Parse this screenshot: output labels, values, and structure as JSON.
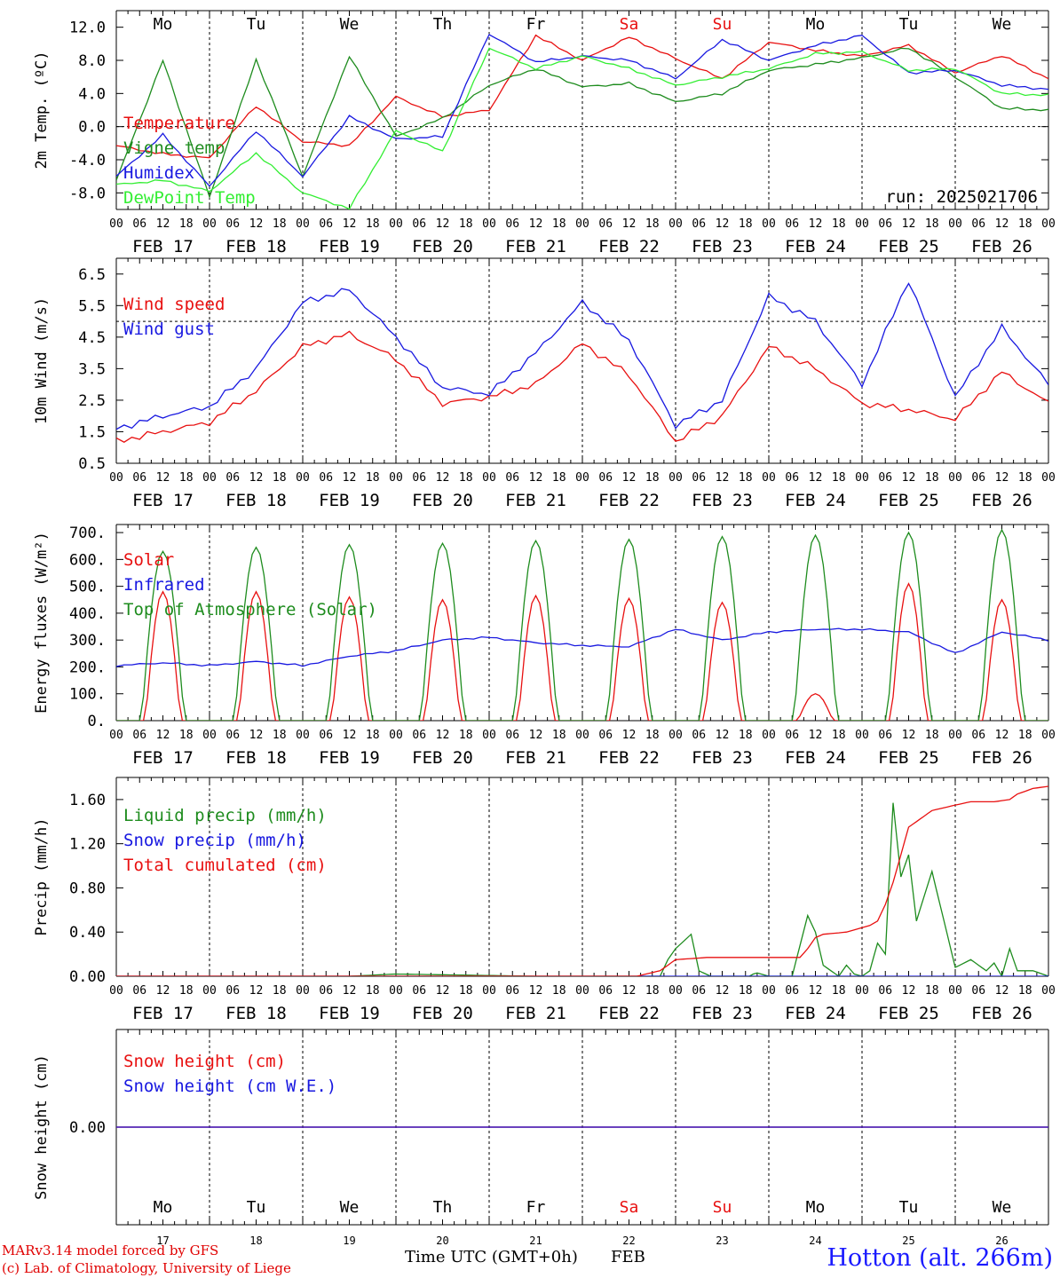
{
  "colors": {
    "red": "#e81010",
    "darkgreen": "#1e8c1e",
    "blue": "#1818e0",
    "lightgreen": "#33ee33",
    "grid": "#000000"
  },
  "days": [
    {
      "abbr": "Mo",
      "date": "FEB 17",
      "num": "17",
      "weekend": false
    },
    {
      "abbr": "Tu",
      "date": "FEB 18",
      "num": "18",
      "weekend": false
    },
    {
      "abbr": "We",
      "date": "FEB 19",
      "num": "19",
      "weekend": false
    },
    {
      "abbr": "Th",
      "date": "FEB 20",
      "num": "20",
      "weekend": false
    },
    {
      "abbr": "Fr",
      "date": "FEB 21",
      "num": "21",
      "weekend": false
    },
    {
      "abbr": "Sa",
      "date": "FEB 22",
      "num": "22",
      "weekend": true
    },
    {
      "abbr": "Su",
      "date": "FEB 23",
      "num": "23",
      "weekend": true
    },
    {
      "abbr": "Mo",
      "date": "FEB 24",
      "num": "24",
      "weekend": false
    },
    {
      "abbr": "Tu",
      "date": "FEB 25",
      "num": "25",
      "weekend": false
    },
    {
      "abbr": "We",
      "date": "FEB 26",
      "num": "26",
      "weekend": false
    }
  ],
  "hour_labels": [
    "00",
    "06",
    "12",
    "18"
  ],
  "chart_data": [
    {
      "id": "temp",
      "type": "line",
      "ylabel": "2m Temp. (ºC)",
      "ylim": [
        -10,
        14
      ],
      "yticks": [
        -8.0,
        -4.0,
        0.0,
        4.0,
        8.0,
        12.0
      ],
      "ytick_labels": [
        "-8.0",
        "-4.0",
        "0.0",
        "4.0",
        "8.0",
        "12.0"
      ],
      "ref_line": 0.0,
      "annotation": "run: 2025021706",
      "x_hours": [
        0,
        12,
        24,
        36,
        48,
        60,
        72,
        84,
        96,
        108,
        120,
        132,
        144,
        156,
        168,
        180,
        192,
        204,
        216,
        228,
        240
      ],
      "series": [
        {
          "name": "Temperature",
          "color": "#e81010",
          "values": [
            -2.3,
            -3.3,
            -3.8,
            2.5,
            -1.8,
            -2.3,
            3.6,
            1.2,
            2.0,
            11.0,
            8.0,
            10.8,
            8.2,
            5.8,
            10.2,
            9.2,
            8.5,
            9.8,
            6.5,
            8.6,
            5.8
          ]
        },
        {
          "name": "Vigne temp",
          "color": "#1e8c1e",
          "values": [
            -6.5,
            8.0,
            -8.5,
            8.1,
            -6.0,
            8.5,
            -1.2,
            1.0,
            5.0,
            7.0,
            4.8,
            5.2,
            3.0,
            4.0,
            6.8,
            7.5,
            8.3,
            9.5,
            6.0,
            2.2,
            2.0
          ]
        },
        {
          "name": "Humidex",
          "color": "#1818e0",
          "values": [
            -6.0,
            -1.0,
            -7.2,
            -0.5,
            -6.0,
            1.2,
            -1.5,
            -1.2,
            11.2,
            7.8,
            8.5,
            8.0,
            5.8,
            10.5,
            8.0,
            9.8,
            11.0,
            6.5,
            6.8,
            5.0,
            4.5
          ]
        },
        {
          "name": "DewPoint Temp",
          "color": "#33ee33",
          "values": [
            -7.0,
            -6.5,
            -7.8,
            -3.2,
            -8.0,
            -9.9,
            -0.5,
            -3.0,
            9.5,
            7.0,
            8.5,
            7.0,
            5.0,
            6.0,
            7.0,
            8.8,
            9.0,
            6.8,
            7.0,
            4.0,
            3.8
          ]
        }
      ]
    },
    {
      "id": "wind",
      "type": "line",
      "ylabel": "10m Wind (m/s)",
      "ylim": [
        0.5,
        7.0
      ],
      "yticks": [
        0.5,
        1.5,
        2.5,
        3.5,
        4.5,
        5.5,
        6.5
      ],
      "ytick_labels": [
        "0.5",
        "1.5",
        "2.5",
        "3.5",
        "4.5",
        "5.5",
        "6.5"
      ],
      "ref_line": 5.0,
      "x_hours": [
        0,
        12,
        24,
        36,
        48,
        60,
        72,
        84,
        96,
        108,
        120,
        132,
        144,
        156,
        168,
        180,
        192,
        204,
        216,
        228,
        240
      ],
      "series": [
        {
          "name": "Wind speed",
          "color": "#e81010",
          "values": [
            1.2,
            1.5,
            1.8,
            2.8,
            4.2,
            4.6,
            3.8,
            2.4,
            2.6,
            3.0,
            4.3,
            3.3,
            1.2,
            2.0,
            4.2,
            3.5,
            2.4,
            2.2,
            1.9,
            3.4,
            2.4
          ]
        },
        {
          "name": "Wind gust",
          "color": "#1818e0",
          "values": [
            1.6,
            2.0,
            2.3,
            3.5,
            5.6,
            6.0,
            4.5,
            2.9,
            2.7,
            4.0,
            5.6,
            4.4,
            1.7,
            2.5,
            5.8,
            5.0,
            3.0,
            6.3,
            2.6,
            4.8,
            3.0
          ]
        }
      ]
    },
    {
      "id": "flux",
      "type": "line",
      "ylabel": "Energy fluxes (W/m²)",
      "ylim": [
        0,
        730
      ],
      "yticks": [
        0,
        100,
        200,
        300,
        400,
        500,
        600,
        700
      ],
      "ytick_labels": [
        "0.",
        "100.",
        "200.",
        "300.",
        "400.",
        "500.",
        "600.",
        "700."
      ],
      "series": [
        {
          "name": "Solar",
          "color": "#e81010",
          "daily_peaks": [
            480,
            480,
            460,
            450,
            465,
            455,
            440,
            100,
            510,
            450
          ]
        },
        {
          "name": "Infrared",
          "color": "#1818e0",
          "x_hours": [
            0,
            12,
            24,
            36,
            48,
            60,
            72,
            84,
            96,
            108,
            120,
            132,
            144,
            156,
            168,
            180,
            192,
            204,
            216,
            228,
            240
          ],
          "values": [
            205,
            215,
            205,
            220,
            205,
            240,
            260,
            300,
            310,
            290,
            280,
            275,
            340,
            300,
            330,
            340,
            340,
            330,
            250,
            330,
            300
          ]
        },
        {
          "name": "Top of Atmosphere (Solar)",
          "color": "#1e8c1e",
          "daily_peaks": [
            630,
            645,
            655,
            660,
            670,
            675,
            685,
            690,
            700,
            710
          ]
        }
      ]
    },
    {
      "id": "precip",
      "type": "line",
      "ylabel": "Precip (mm/h)",
      "ylim": [
        0,
        1.8
      ],
      "yticks": [
        0.0,
        0.4,
        0.8,
        1.2,
        1.6
      ],
      "ytick_labels": [
        "0.00",
        "0.40",
        "0.80",
        "1.20",
        "1.60"
      ],
      "series": [
        {
          "name": "Liquid precip (mm/h)",
          "color": "#1e8c1e",
          "x_hours": [
            0,
            60,
            72,
            108,
            120,
            132,
            140,
            142,
            144,
            148,
            150,
            153,
            156,
            160,
            163,
            164,
            165,
            168,
            170,
            172,
            174,
            178,
            180,
            182,
            184,
            186,
            188,
            190,
            192,
            194,
            196,
            198,
            200,
            202,
            204,
            206,
            210,
            216,
            220,
            224,
            226,
            228,
            230,
            232,
            236,
            240
          ],
          "values": [
            0,
            0,
            0.02,
            0,
            0,
            0,
            0,
            0.15,
            0.25,
            0.38,
            0.05,
            0,
            0,
            0,
            0,
            0.02,
            0.03,
            0,
            0,
            0,
            0,
            0.55,
            0.4,
            0.1,
            0.05,
            0,
            0.1,
            0.02,
            0,
            0.05,
            0.3,
            0.2,
            1.57,
            0.9,
            1.1,
            0.5,
            0.95,
            0.08,
            0.15,
            0.05,
            0.12,
            0,
            0.25,
            0.05,
            0.05,
            0
          ]
        },
        {
          "name": "Snow precip (mm/h)",
          "color": "#1818e0",
          "x_hours": [
            0,
            240
          ],
          "values": [
            0,
            0
          ]
        },
        {
          "name": "Total cumulated (cm)",
          "color": "#e81010",
          "x_hours": [
            0,
            134,
            140,
            144,
            152,
            160,
            168,
            176,
            178,
            180,
            182,
            188,
            192,
            194,
            196,
            198,
            200,
            202,
            204,
            210,
            216,
            220,
            226,
            230,
            232,
            236,
            240
          ],
          "values": [
            0,
            0,
            0.05,
            0.15,
            0.17,
            0.17,
            0.17,
            0.17,
            0.25,
            0.35,
            0.38,
            0.4,
            0.44,
            0.46,
            0.5,
            0.65,
            0.85,
            1.1,
            1.35,
            1.5,
            1.55,
            1.58,
            1.58,
            1.6,
            1.65,
            1.7,
            1.72
          ]
        }
      ]
    },
    {
      "id": "snow",
      "type": "line",
      "ylabel": "Snow height (cm)",
      "ylim": [
        -1,
        1
      ],
      "yticks": [
        0.0
      ],
      "ytick_labels": [
        "0.00"
      ],
      "series": [
        {
          "name": "Snow height (cm)",
          "color": "#e81010",
          "x_hours": [
            0,
            240
          ],
          "values": [
            0,
            0
          ]
        },
        {
          "name": "Snow height (cm W.E.)",
          "color": "#1818e0",
          "x_hours": [
            0,
            240
          ],
          "values": [
            0,
            0
          ]
        }
      ]
    }
  ],
  "footer": {
    "model": "MARv3.14 model forced by GFS",
    "copyright": "(c) Lab. of Climatology, University of Liege",
    "xlabel": "Time UTC (GMT+0h)",
    "month": "FEB",
    "station": "Hotton (alt. 266m)"
  }
}
